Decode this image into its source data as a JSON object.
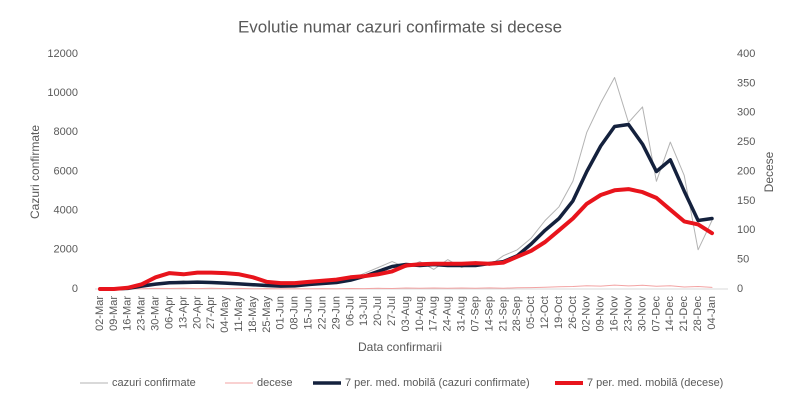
{
  "chart_data": {
    "type": "line",
    "title": "Evolutie numar cazuri confirmate si decese",
    "x_label": "Data confirmarii",
    "y_label": "Cazuri confirmate",
    "y2_label": "Decese",
    "categories": [
      "02-Mar",
      "09-Mar",
      "16-Mar",
      "23-Mar",
      "30-Mar",
      "06-Apr",
      "13-Apr",
      "20-Apr",
      "27-Apr",
      "04-May",
      "11-May",
      "18-May",
      "25-May",
      "01-Jun",
      "08-Jun",
      "15-Jun",
      "22-Jun",
      "29-Jun",
      "06-Jul",
      "13-Jul",
      "20-Jul",
      "27-Jul",
      "03-Aug",
      "10-Aug",
      "17-Aug",
      "24-Aug",
      "31-Aug",
      "07-Sep",
      "14-Sep",
      "21-Sep",
      "28-Sep",
      "05-Oct",
      "12-Oct",
      "19-Oct",
      "26-Oct",
      "02-Nov",
      "09-Nov",
      "16-Nov",
      "23-Nov",
      "30-Nov",
      "07-Dec",
      "14-Dec",
      "21-Dec",
      "28-Dec",
      "04-Jan"
    ],
    "ylim": [
      0,
      12000
    ],
    "yticks": [
      0,
      2000,
      4000,
      6000,
      8000,
      10000,
      12000
    ],
    "y2lim": [
      0,
      400
    ],
    "y2ticks": [
      0,
      50,
      100,
      150,
      200,
      250,
      300,
      350,
      400
    ],
    "legend": "bottom",
    "series": [
      {
        "name": "cazuri confirmate",
        "color": "#b3b3b3",
        "line_width": 1,
        "values": [
          0,
          10,
          60,
          250,
          300,
          350,
          420,
          300,
          380,
          280,
          320,
          190,
          230,
          120,
          200,
          300,
          250,
          420,
          500,
          800,
          1100,
          1400,
          1100,
          1400,
          1000,
          1500,
          1100,
          1400,
          1200,
          1700,
          2000,
          2600,
          3500,
          4200,
          5500,
          8000,
          9500,
          10800,
          8500,
          9300,
          5500,
          7500,
          5800,
          2000,
          3500
        ]
      },
      {
        "name": "decese",
        "color": "#f3a3a3",
        "line_width": 1,
        "values": [
          0,
          0,
          5,
          15,
          30,
          25,
          35,
          20,
          35,
          20,
          30,
          12,
          18,
          8,
          14,
          10,
          20,
          12,
          25,
          18,
          35,
          28,
          50,
          35,
          50,
          38,
          52,
          36,
          55,
          40,
          60,
          70,
          85,
          110,
          130,
          170,
          150,
          200,
          160,
          190,
          140,
          170,
          100,
          130,
          80
        ]
      },
      {
        "name": "7 per. med. mobilă (cazuri confirmate)",
        "color": "#14213d",
        "line_width": 3.5,
        "values": [
          0,
          5,
          30,
          150,
          250,
          320,
          330,
          350,
          330,
          300,
          260,
          220,
          180,
          150,
          160,
          230,
          280,
          330,
          450,
          650,
          900,
          1150,
          1250,
          1200,
          1250,
          1200,
          1200,
          1200,
          1300,
          1400,
          1700,
          2300,
          3000,
          3600,
          4500,
          6000,
          7300,
          8300,
          8400,
          7400,
          6000,
          6600,
          5000,
          3500,
          3600
        ]
      },
      {
        "name": "7 per. med. mobilă (decese)",
        "color": "#e8141c",
        "line_width": 4,
        "axis": "y2",
        "values": [
          0,
          0,
          2,
          8,
          20,
          27,
          25,
          28,
          28,
          27,
          25,
          20,
          12,
          10,
          10,
          12,
          14,
          16,
          20,
          22,
          25,
          30,
          40,
          42,
          43,
          43,
          43,
          44,
          43,
          45,
          55,
          65,
          80,
          100,
          120,
          145,
          160,
          168,
          170,
          165,
          155,
          135,
          115,
          110,
          95
        ]
      }
    ]
  }
}
